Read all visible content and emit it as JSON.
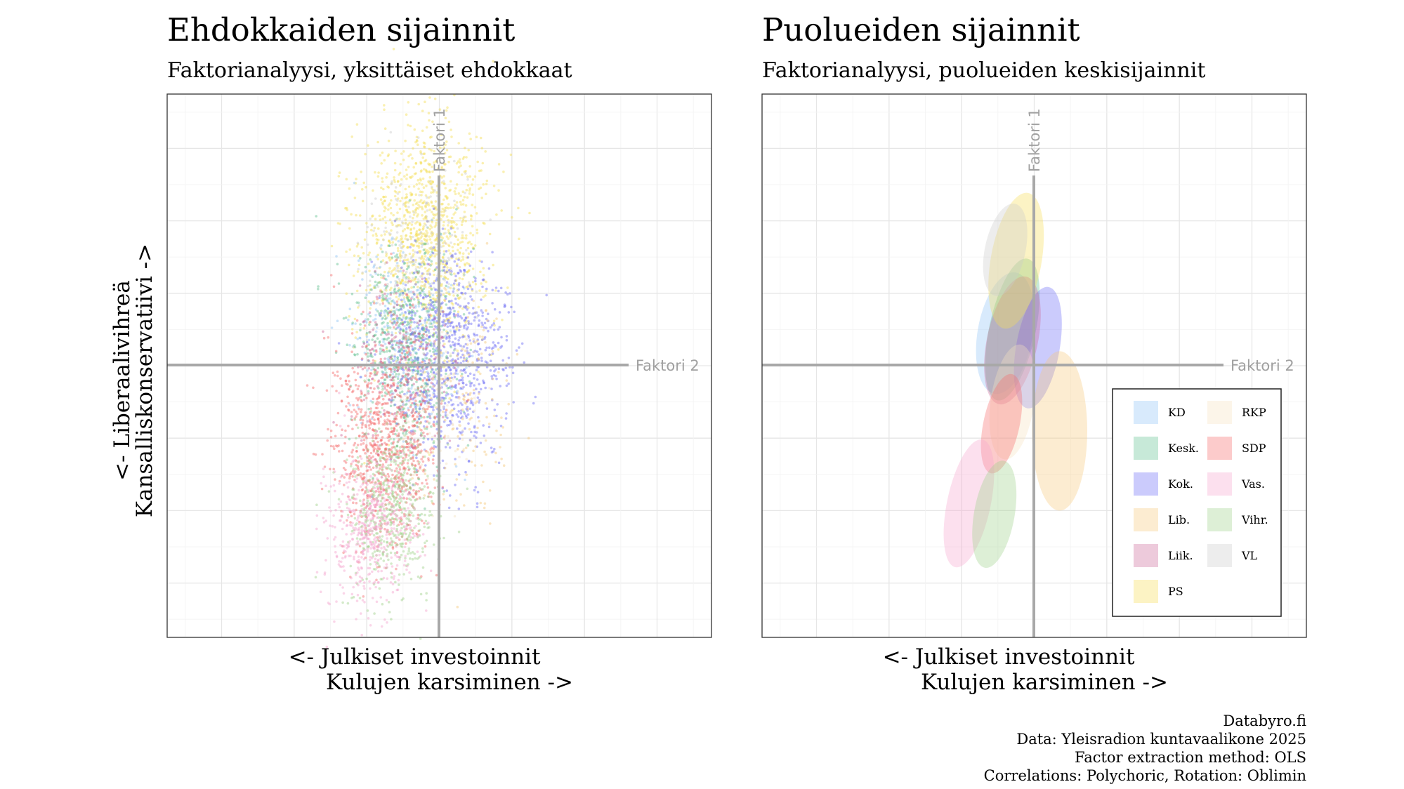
{
  "left_panel": {
    "title": "Ehdokkaiden sijainnit",
    "subtitle": "Faktorianalyysi, yksittäiset ehdokkaat",
    "x_axis_label_line1": "<- Julkiset investoinnit",
    "x_axis_label_line2": "Kulujen karsiminen ->",
    "y_axis_label_line1": "<- Liberaalivihreä",
    "y_axis_label_line2": "Kansalliskonservatiivi ->",
    "ref_label_x": "Faktori 2",
    "ref_label_y": "Faktori 1"
  },
  "right_panel": {
    "title": "Puolueiden sijainnit",
    "subtitle": "Faktorianalyysi, puolueiden keskisijainnit",
    "x_axis_label_line1": "<- Julkiset investoinnit",
    "x_axis_label_line2": "Kulujen karsiminen ->",
    "ref_label_x": "Faktori 2",
    "ref_label_y": "Faktori 1"
  },
  "caption": [
    "Databyro.fi",
    "Data: Yleisradion kuntavaalikone 2025",
    "Factor extraction method: OLS",
    "Correlations: Polychoric, Rotation: Oblimin"
  ],
  "party_colors": {
    "KD": "#8fc3f5",
    "Kesk.": "#5fbf8f",
    "Kok.": "#6a6af5",
    "Lib.": "#f5c87a",
    "Liik.": "#cc6699",
    "PS": "#f5dd55",
    "RKP": "#f5e2c0",
    "SDP": "#f56a6a",
    "Vas.": "#f5a5cf",
    "Vihr.": "#9fd18a",
    "VL": "#cccccc"
  },
  "chart_data": [
    {
      "type": "scatter",
      "name": "candidates",
      "xlim": [
        -3.75,
        3.75
      ],
      "ylim": [
        -3.75,
        3.75
      ],
      "grid": true,
      "reference_lines": {
        "x": 0,
        "y": 0
      },
      "series": [
        {
          "name": "PS",
          "center": [
            -0.2,
            1.8
          ],
          "sd": [
            0.45,
            0.75
          ],
          "n": 1100
        },
        {
          "name": "VL",
          "center": [
            -0.3,
            1.5
          ],
          "sd": [
            0.4,
            0.6
          ],
          "n": 200
        },
        {
          "name": "KD",
          "center": [
            -0.45,
            0.35
          ],
          "sd": [
            0.35,
            0.6
          ],
          "n": 400
        },
        {
          "name": "Kesk.",
          "center": [
            -0.45,
            0.2
          ],
          "sd": [
            0.35,
            0.7
          ],
          "n": 650
        },
        {
          "name": "Kok.",
          "center": [
            0.15,
            0.1
          ],
          "sd": [
            0.4,
            0.7
          ],
          "n": 800
        },
        {
          "name": "Liik.",
          "center": [
            -0.5,
            0.1
          ],
          "sd": [
            0.35,
            0.6
          ],
          "n": 250
        },
        {
          "name": "Lib.",
          "center": [
            0.35,
            -0.5
          ],
          "sd": [
            0.3,
            0.8
          ],
          "n": 150
        },
        {
          "name": "RKP",
          "center": [
            -0.1,
            -0.4
          ],
          "sd": [
            0.3,
            0.6
          ],
          "n": 150
        },
        {
          "name": "SDP",
          "center": [
            -0.75,
            -1.1
          ],
          "sd": [
            0.35,
            0.7
          ],
          "n": 900
        },
        {
          "name": "Vihr.",
          "center": [
            -0.65,
            -1.9
          ],
          "sd": [
            0.3,
            0.6
          ],
          "n": 550
        },
        {
          "name": "Vas.",
          "center": [
            -0.95,
            -2.3
          ],
          "sd": [
            0.3,
            0.5
          ],
          "n": 500
        }
      ]
    },
    {
      "type": "scatter",
      "name": "party_ellipses",
      "xlim": [
        -3.75,
        3.75
      ],
      "ylim": [
        -3.75,
        3.75
      ],
      "grid": true,
      "reference_lines": {
        "x": 0,
        "y": 0
      },
      "legend": {
        "position": "bottom-right",
        "columns": 2
      },
      "series": [
        {
          "name": "KD",
          "center": [
            -0.4,
            0.45
          ],
          "rx": 0.38,
          "ry": 0.85,
          "angle": 10
        },
        {
          "name": "Kesk.",
          "center": [
            -0.3,
            0.5
          ],
          "rx": 0.32,
          "ry": 1.0,
          "angle": 12
        },
        {
          "name": "Kok.",
          "center": [
            0.05,
            0.25
          ],
          "rx": 0.3,
          "ry": 0.85,
          "angle": 10
        },
        {
          "name": "Lib.",
          "center": [
            0.35,
            -0.9
          ],
          "rx": 0.38,
          "ry": 1.1,
          "angle": 0
        },
        {
          "name": "Liik.",
          "center": [
            -0.3,
            0.35
          ],
          "rx": 0.35,
          "ry": 0.9,
          "angle": 12
        },
        {
          "name": "PS",
          "center": [
            -0.25,
            1.45
          ],
          "rx": 0.35,
          "ry": 0.95,
          "angle": 10
        },
        {
          "name": "RKP",
          "center": [
            -0.3,
            -0.5
          ],
          "rx": 0.3,
          "ry": 0.8,
          "angle": 8
        },
        {
          "name": "SDP",
          "center": [
            -0.45,
            -0.8
          ],
          "rx": 0.25,
          "ry": 0.7,
          "angle": 12
        },
        {
          "name": "Vas.",
          "center": [
            -0.9,
            -1.9
          ],
          "rx": 0.3,
          "ry": 0.9,
          "angle": 12
        },
        {
          "name": "Vihr.",
          "center": [
            -0.55,
            -2.05
          ],
          "rx": 0.28,
          "ry": 0.75,
          "angle": 10
        },
        {
          "name": "VL",
          "center": [
            -0.4,
            1.6
          ],
          "rx": 0.28,
          "ry": 0.65,
          "angle": 12
        }
      ],
      "legend_order": [
        "KD",
        "Kesk.",
        "Kok.",
        "Lib.",
        "Liik.",
        "PS",
        "RKP",
        "SDP",
        "Vas.",
        "Vihr.",
        "VL"
      ]
    }
  ]
}
